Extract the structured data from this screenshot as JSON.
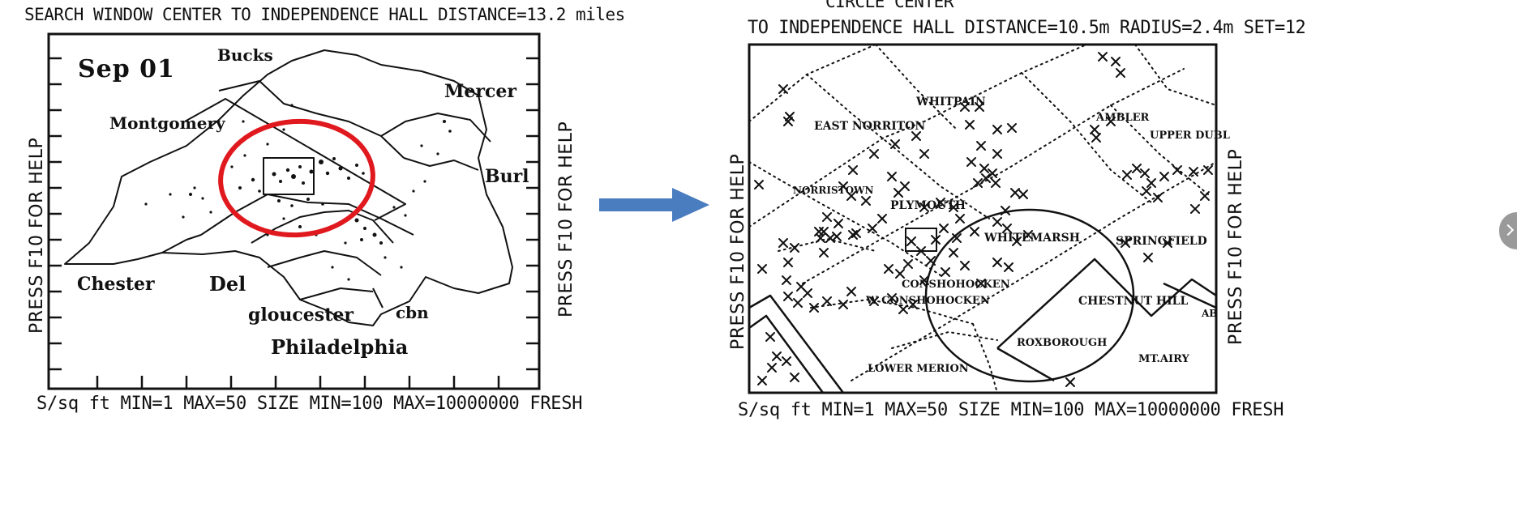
{
  "left_panel": {
    "title": "SEARCH WINDOW CENTER TO INDEPENDENCE HALL DISTANCE=13.2 miles",
    "date_label": "Sep 01",
    "side_label_left": "PRESS F10 FOR HELP",
    "side_label_right": "PRESS F10 FOR HELP",
    "counties": [
      "Bucks",
      "Mercer",
      "Montgomery",
      "Burl",
      "Chester",
      "Del",
      "gloucester",
      "Philadelphia",
      "cbn"
    ],
    "footer": "S/sq ft   MIN=1   MAX=50   SIZE MIN=100   MAX=10000000   FRESH",
    "highlight_color": "#e0191f"
  },
  "right_panel": {
    "title_line1": "CIRCLE CENTER",
    "title_line2": "TO INDEPENDENCE HALL DISTANCE=10.5m  RADIUS=2.4m  SET=12",
    "side_label_left": "PRESS F10 FOR HELP",
    "side_label_right": "PRESS F10 FOR HELP",
    "townships": [
      "WHITPAIN",
      "EAST NORRITON",
      "AMBLER",
      "UPPER DUBL",
      "NORRISTOWN",
      "PLYMOUTH",
      "WHITEMARSH",
      "SPRINGFIELD",
      "CONSHOHOCKEN",
      "W CONSHOHOCKEN",
      "CHESTNUT HILL",
      "ROXBOROUGH",
      "MT.AIRY",
      "LOWER MERION",
      "AB"
    ],
    "footer": "S/sq ft  MIN=1   MAX=50   SIZE MIN=100   MAX=10000000   FRESH"
  },
  "arrow": {
    "color": "#4a7cc0"
  },
  "icons": {
    "side_tab": "chevron-right-icon"
  }
}
